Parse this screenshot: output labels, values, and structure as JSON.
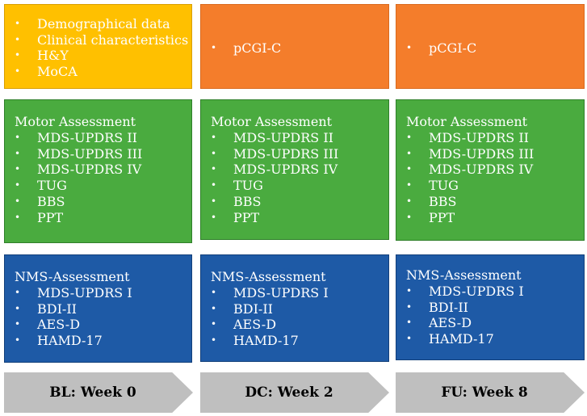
{
  "columns": [
    {
      "top_items": [
        "Demographical data",
        "Clinical characteristics",
        "H&Y",
        "MoCA"
      ],
      "motor_title": "Motor Assessment",
      "motor_items": [
        "MDS-UPDRS II",
        "MDS-UPDRS III",
        "MDS-UPDRS IV",
        "TUG",
        "BBS",
        "PPT"
      ],
      "nms_title": "NMS-Assessment",
      "nms_items": [
        "MDS-UPDRS I",
        "BDI-II",
        "AES-D",
        "HAMD-17"
      ],
      "timepoint": "BL: Week 0"
    },
    {
      "top_items": [
        "pCGI-C"
      ],
      "motor_title": "Motor Assessment",
      "motor_items": [
        "MDS-UPDRS II",
        "MDS-UPDRS III",
        "MDS-UPDRS IV",
        "TUG",
        "BBS",
        "PPT"
      ],
      "nms_title": "NMS-Assessment",
      "nms_items": [
        "MDS-UPDRS I",
        "BDI-II",
        "AES-D",
        "HAMD-17"
      ],
      "timepoint": "DC: Week 2"
    },
    {
      "top_items": [
        "pCGI-C"
      ],
      "motor_title": "Motor Assessment",
      "motor_items": [
        "MDS-UPDRS II",
        "MDS-UPDRS III",
        "MDS-UPDRS IV",
        "TUG",
        "BBS",
        "PPT"
      ],
      "nms_title": "NMS-Assessment",
      "nms_items": [
        "MDS-UPDRS I",
        "BDI-II",
        "AES-D",
        "HAMD-17"
      ],
      "timepoint": "FU: Week 8"
    }
  ],
  "bullet_char": "•",
  "colors": {
    "baseline_top": "#ffc000",
    "followup_top": "#f47d2b",
    "motor": "#4aab3f",
    "nms": "#1e5aa6",
    "timeline_arrow": "#bfbfbf"
  }
}
